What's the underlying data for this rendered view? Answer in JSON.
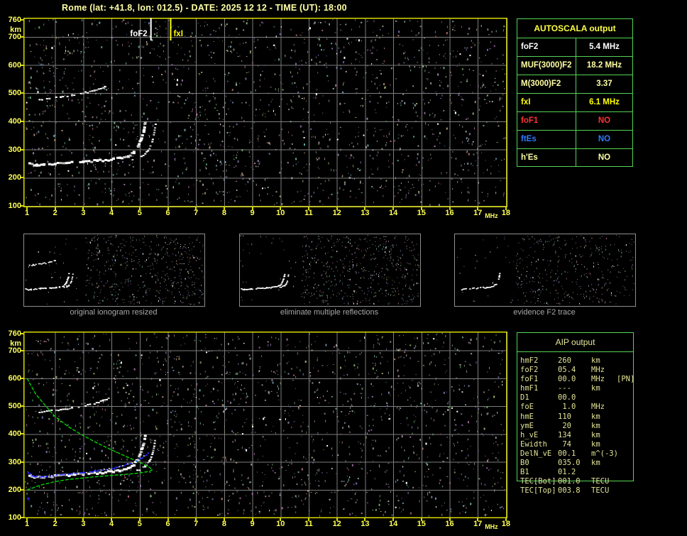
{
  "title": "Rome (lat: +41.8, lon: 012.5) - DATE: 2025 12 12 - TIME (UT): 18:00",
  "colors": {
    "plot_border": "#d9d900",
    "grid": "#7d7d7d",
    "tick_label": "#ffff55",
    "title_text": "#ffffa6",
    "table_border": "#55d455",
    "profile_green": "#00d400",
    "fitted_blue": "#2a2aff",
    "echo_white": "#ffffff",
    "caption_gray": "#a8a8a8"
  },
  "top_plot": {
    "y_unit": "km",
    "x_unit": "MHz",
    "y_ticks": [
      760,
      700,
      600,
      500,
      400,
      300,
      200,
      100
    ],
    "x_ticks": [
      1,
      2,
      3,
      4,
      5,
      6,
      7,
      8,
      9,
      10,
      11,
      12,
      13,
      14,
      15,
      16,
      17,
      18
    ],
    "annotations": [
      {
        "label": "foF2",
        "freq_mhz": 5.4,
        "color": "#ffffff",
        "side": "left"
      },
      {
        "label": "fxI",
        "freq_mhz": 6.1,
        "color": "#ffff00",
        "side": "right"
      }
    ]
  },
  "bottom_plot": {
    "y_unit": "km",
    "x_unit": "MHz",
    "y_ticks": [
      760,
      700,
      600,
      500,
      400,
      300,
      200,
      100
    ],
    "x_ticks": [
      1,
      2,
      3,
      4,
      5,
      6,
      7,
      8,
      9,
      10,
      11,
      12,
      13,
      14,
      15,
      16,
      17,
      18
    ]
  },
  "autoscala": {
    "header": "AUTOSCALA output",
    "rows": [
      {
        "label": "foF2",
        "value": "5.4 MHz",
        "color": "#ffffff"
      },
      {
        "label": "MUF(3000)F2",
        "value": "18.2 MHz",
        "color": "#ffffa6"
      },
      {
        "label": "M(3000)F2",
        "value": "3.37",
        "color": "#ffffa6"
      },
      {
        "label": "fxI",
        "value": "6.1 MHz",
        "color": "#ffff00"
      },
      {
        "label": "foF1",
        "value": "NO",
        "color": "#ff3333"
      },
      {
        "label": "ftEs",
        "value": "NO",
        "color": "#2e7bff"
      },
      {
        "label": "h'Es",
        "value": "NO",
        "color": "#ffffa6"
      }
    ]
  },
  "thumbnails": [
    {
      "caption": "original ionogram resized",
      "traces": [
        "f2_trace",
        "x_mode",
        "second_hop"
      ]
    },
    {
      "caption": "eliminate multiple reflections",
      "traces": [
        "f2_trace",
        "x_mode"
      ]
    },
    {
      "caption": "evidence F2 trace",
      "traces": [
        "f2_trace"
      ]
    }
  ],
  "aip": {
    "header": "AIP output",
    "rows": [
      {
        "label": "hmF2",
        "value": "260",
        "unit": "km",
        "extra": ""
      },
      {
        "label": "foF2",
        "value": "05.4",
        "unit": "MHz",
        "extra": ""
      },
      {
        "label": "foF1",
        "value": "00.0",
        "unit": "MHz",
        "extra": "[PN]"
      },
      {
        "label": "hmF1",
        "value": "---",
        "unit": "km",
        "extra": ""
      },
      {
        "label": "D1",
        "value": "00.0",
        "unit": "",
        "extra": ""
      },
      {
        "label": "foE",
        "value": " 1.0",
        "unit": "MHz",
        "extra": ""
      },
      {
        "label": "hmE",
        "value": "110",
        "unit": "km",
        "extra": ""
      },
      {
        "label": "ymE",
        "value": " 20",
        "unit": "km",
        "extra": ""
      },
      {
        "label": "h_vE",
        "value": "134",
        "unit": "km",
        "extra": ""
      },
      {
        "label": "Ewidth",
        "value": " 74",
        "unit": "km",
        "extra": ""
      },
      {
        "label": "DelN_vE",
        "value": "00.1",
        "unit": "m^(-3)",
        "extra": ""
      },
      {
        "label": "B0",
        "value": "035.0",
        "unit": "km",
        "extra": ""
      },
      {
        "label": "B1",
        "value": "01.2",
        "unit": "",
        "extra": ""
      },
      {
        "label": "TEC[Bot]",
        "value": "001.0",
        "unit": "TECU",
        "extra": ""
      },
      {
        "label": "TEC[Top]",
        "value": "003.8",
        "unit": "TECU",
        "extra": ""
      }
    ]
  },
  "chart_data": {
    "type": "scatter",
    "x_unit": "MHz",
    "y_unit": "km",
    "xlim": [
      1,
      18
    ],
    "ylim": [
      100,
      760
    ],
    "traces": {
      "f2_trace": [
        [
          1.1,
          248
        ],
        [
          1.35,
          243
        ],
        [
          1.6,
          245
        ],
        [
          2,
          248
        ],
        [
          2.5,
          252
        ],
        [
          3,
          256
        ],
        [
          3.5,
          260
        ],
        [
          4,
          264
        ],
        [
          4.3,
          269
        ],
        [
          4.6,
          277
        ],
        [
          4.8,
          289
        ],
        [
          4.95,
          310
        ],
        [
          5.05,
          335
        ],
        [
          5.15,
          365
        ],
        [
          5.2,
          395
        ]
      ],
      "x_mode": [
        [
          4.75,
          263
        ],
        [
          5.0,
          272
        ],
        [
          5.2,
          284
        ],
        [
          5.35,
          302
        ],
        [
          5.45,
          327
        ],
        [
          5.52,
          358
        ],
        [
          5.57,
          392
        ]
      ],
      "second_hop": [
        [
          1.45,
          477
        ],
        [
          1.8,
          482
        ],
        [
          2.2,
          487
        ],
        [
          2.6,
          493
        ],
        [
          3.0,
          500
        ],
        [
          3.4,
          509
        ],
        [
          3.7,
          519
        ],
        [
          3.9,
          528
        ]
      ],
      "profile_green": [
        [
          1,
          600
        ],
        [
          1.3,
          545
        ],
        [
          1.6,
          508
        ],
        [
          2,
          462
        ],
        [
          2.5,
          424
        ],
        [
          3,
          394
        ],
        [
          3.5,
          367
        ],
        [
          4,
          343
        ],
        [
          4.5,
          320
        ],
        [
          5,
          298
        ],
        [
          5.3,
          283
        ],
        [
          5.45,
          272
        ],
        [
          5.35,
          266
        ],
        [
          5,
          260
        ],
        [
          4.5,
          255
        ],
        [
          4,
          251
        ],
        [
          3.5,
          247
        ],
        [
          3,
          242
        ],
        [
          2.5,
          237
        ],
        [
          2,
          229
        ],
        [
          1.5,
          217
        ],
        [
          1,
          199
        ]
      ],
      "fitted_blue": [
        [
          1.05,
          262
        ],
        [
          1.15,
          252
        ],
        [
          1.3,
          247
        ],
        [
          1.5,
          246
        ],
        [
          1.7,
          248
        ],
        [
          2,
          251
        ],
        [
          2.3,
          254
        ],
        [
          2.6,
          257
        ],
        [
          3,
          261
        ],
        [
          3.4,
          266
        ],
        [
          3.8,
          272
        ],
        [
          4.1,
          278
        ],
        [
          4.4,
          286
        ],
        [
          4.7,
          295
        ],
        [
          4.9,
          304
        ],
        [
          5.05,
          312
        ],
        [
          5.2,
          322
        ],
        [
          5.3,
          330
        ]
      ],
      "isolated_blue_dot": [
        1.05,
        168
      ]
    }
  }
}
